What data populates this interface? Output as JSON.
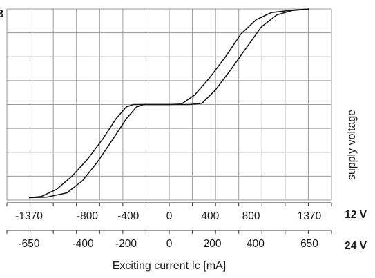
{
  "chart_data": {
    "type": "line",
    "corner_label": "B",
    "ylabel": "supply voltage",
    "xlabel": "Exciting current Ic [mA]",
    "grid": true,
    "xlim": [
      -1570,
      1570
    ],
    "ylim": [
      0,
      8
    ],
    "axes": [
      {
        "name": "12 V",
        "ticks": [
          {
            "label": "-1370",
            "value": -1370
          },
          {
            "label": "-800",
            "value": -800
          },
          {
            "label": "-400",
            "value": -400
          },
          {
            "label": "0",
            "value": 0
          },
          {
            "label": "400",
            "value": 400
          },
          {
            "label": "800",
            "value": 800
          },
          {
            "label": "1370",
            "value": 1370
          }
        ]
      },
      {
        "name": "24 V",
        "ticks": [
          {
            "label": "-650",
            "value": -1370
          },
          {
            "label": "-400",
            "value": -843
          },
          {
            "label": "-200",
            "value": -422
          },
          {
            "label": "0",
            "value": 0
          },
          {
            "label": "200",
            "value": 422
          },
          {
            "label": "400",
            "value": 843
          },
          {
            "label": "650",
            "value": 1370
          }
        ]
      }
    ],
    "series": [
      {
        "points": [
          [
            -1370,
            0.1
          ],
          [
            -1250,
            0.15
          ],
          [
            -1100,
            0.45
          ],
          [
            -950,
            1.0
          ],
          [
            -800,
            1.7
          ],
          [
            -650,
            2.55
          ],
          [
            -520,
            3.4
          ],
          [
            -420,
            3.9
          ],
          [
            -350,
            4.0
          ],
          [
            -200,
            4.0
          ],
          [
            0,
            4.0
          ],
          [
            120,
            4.02
          ],
          [
            250,
            4.4
          ],
          [
            400,
            5.15
          ],
          [
            550,
            6.0
          ],
          [
            700,
            6.95
          ],
          [
            850,
            7.55
          ],
          [
            1000,
            7.85
          ],
          [
            1200,
            7.95
          ],
          [
            1370,
            8.0
          ]
        ]
      },
      {
        "points": [
          [
            -1370,
            0.1
          ],
          [
            -1200,
            0.12
          ],
          [
            -1000,
            0.3
          ],
          [
            -850,
            0.8
          ],
          [
            -700,
            1.6
          ],
          [
            -550,
            2.55
          ],
          [
            -420,
            3.4
          ],
          [
            -320,
            3.9
          ],
          [
            -250,
            4.0
          ],
          [
            0,
            4.0
          ],
          [
            200,
            4.0
          ],
          [
            320,
            4.05
          ],
          [
            450,
            4.6
          ],
          [
            600,
            5.45
          ],
          [
            750,
            6.35
          ],
          [
            900,
            7.25
          ],
          [
            1050,
            7.75
          ],
          [
            1200,
            7.93
          ],
          [
            1370,
            8.0
          ]
        ]
      }
    ]
  }
}
